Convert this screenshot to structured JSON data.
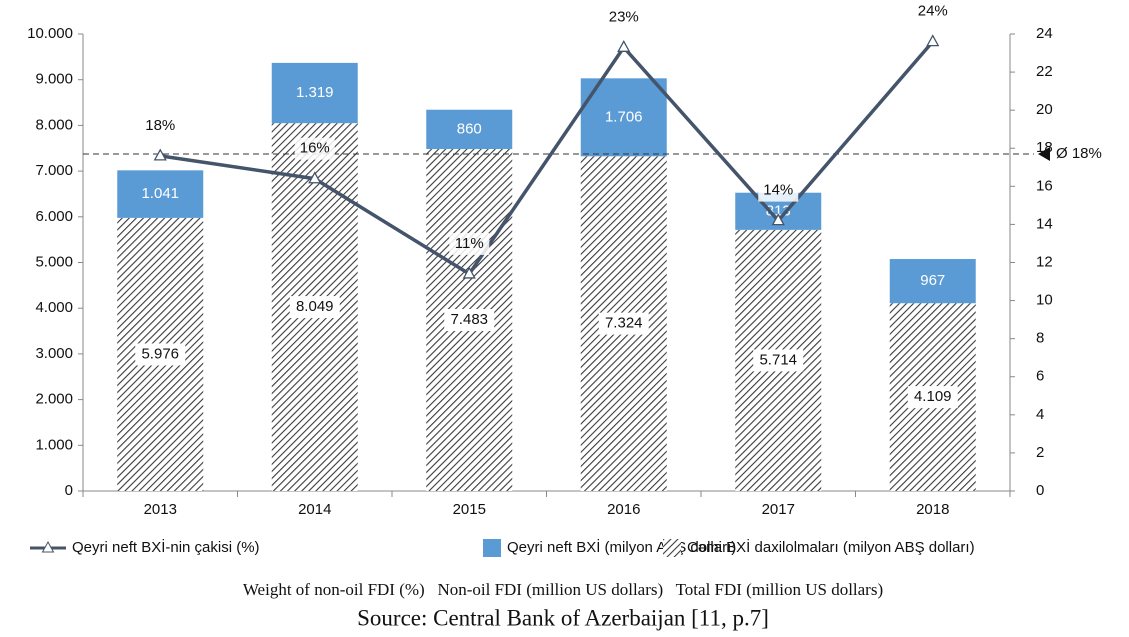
{
  "chart_data": {
    "type": "bar",
    "stacked": true,
    "categories": [
      "2013",
      "2014",
      "2015",
      "2016",
      "2017",
      "2018"
    ],
    "series": [
      {
        "name": "Qeyri neft BXİ-nin çakisi (%)",
        "type": "line",
        "axis": "y2",
        "marker": "triangle",
        "color": "#44546a",
        "values": [
          17.6,
          16.4,
          11.4,
          23.3,
          14.2,
          23.6
        ],
        "value_labels": [
          "18%",
          "16%",
          "11%",
          "23%",
          "14%",
          "24%"
        ]
      },
      {
        "name": "Qeyri neft BXİ (milyon ABŞ dolları)",
        "type": "bar",
        "color": "#5b9bd5",
        "values": [
          1041,
          1319,
          860,
          1706,
          813,
          967
        ],
        "value_labels": [
          "1.041",
          "1.319",
          "860",
          "1.706",
          "813",
          "967"
        ]
      },
      {
        "name": "Cəmi BXİ daxilolmaları (milyon ABŞ dolları)",
        "type": "bar",
        "color": "#3a3a3a",
        "pattern": "hatch",
        "values": [
          5976,
          8049,
          7483,
          7324,
          5714,
          4109
        ],
        "value_labels": [
          "5.976",
          "8.049",
          "7.483",
          "7.324",
          "5.714",
          "4.109"
        ]
      }
    ],
    "ylim": [
      0,
      10000
    ],
    "yticks": [
      0,
      {
        "value": 1000,
        "label": "1.000"
      },
      {
        "value": 2000,
        "label": "2.000"
      },
      {
        "value": 3000,
        "label": "3.000"
      },
      {
        "value": 4000,
        "label": "4.000"
      },
      {
        "value": 5000,
        "label": "5.000"
      },
      {
        "value": 6000,
        "label": "6.000"
      },
      {
        "value": 7000,
        "label": "7.000"
      },
      {
        "value": 8000,
        "label": "8.000"
      },
      {
        "value": 9000,
        "label": "9.000"
      },
      {
        "value": 10000,
        "label": "10.000"
      }
    ],
    "y2lim": [
      0,
      24
    ],
    "y2ticks": [
      0,
      2,
      4,
      6,
      8,
      10,
      12,
      14,
      16,
      18,
      20,
      22,
      24
    ],
    "reference_line": {
      "axis": "y2",
      "value": 17.7,
      "label": "Ø 18%"
    },
    "grid": false,
    "legend": "bottom",
    "caption": "Weight of non-oil FDI (%)   Non-oil FDI (million US dollars)   Total FDI (million US dollars)",
    "source": "Source: Central Bank of Azerbaijan [11, p.7]"
  }
}
